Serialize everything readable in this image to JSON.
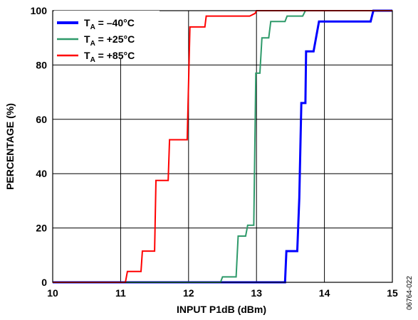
{
  "chart_data": {
    "type": "line",
    "step": true,
    "xlabel": "INPUT P1dB (dBm)",
    "ylabel": "PERCENTAGE (%)",
    "xlim": [
      10,
      15
    ],
    "ylim": [
      0,
      100
    ],
    "xticks": [
      10,
      11,
      12,
      13,
      14,
      15
    ],
    "yticks": [
      0,
      20,
      40,
      60,
      80,
      100
    ],
    "grid": true,
    "legend_position": "top-left",
    "figure_id": "06764-022",
    "series": [
      {
        "name": "T_A = –40°C",
        "name_main": "T",
        "name_sub": "A",
        "name_rest": " = –40°C",
        "color": "#0000ff",
        "x": [
          10,
          13.42,
          13.44,
          13.6,
          13.63,
          13.66,
          13.67,
          13.72,
          13.73,
          13.83,
          13.84,
          13.92,
          13.94,
          14.68,
          14.72,
          15
        ],
        "y": [
          0,
          0,
          11.5,
          11.5,
          31,
          66,
          66,
          66,
          85,
          85,
          85,
          96,
          96,
          96,
          100,
          100
        ]
      },
      {
        "name": "T_A = +25°C",
        "name_main": "T",
        "name_sub": "A",
        "name_rest": " = +25°C",
        "color": "#2e9a6a",
        "x": [
          10,
          12.47,
          12.5,
          12.7,
          12.73,
          12.84,
          12.87,
          12.94,
          12.96,
          12.99,
          13.01,
          13.05,
          13.08,
          13.18,
          13.21,
          13.3,
          13.32,
          13.42,
          13.45,
          13.68,
          13.72,
          15
        ],
        "y": [
          0,
          0,
          2,
          2,
          17,
          17,
          21,
          21,
          21,
          77,
          77,
          77,
          90,
          90,
          96,
          96,
          96,
          96,
          98,
          98,
          100,
          100
        ]
      },
      {
        "name": "T_A = +85°C",
        "name_main": "T",
        "name_sub": "A",
        "name_rest": " = +85°C",
        "color": "#ff0000",
        "x": [
          10,
          11.07,
          11.1,
          11.3,
          11.32,
          11.5,
          11.52,
          11.7,
          11.72,
          11.83,
          11.85,
          11.98,
          12.02,
          12.1,
          12.12,
          12.24,
          12.26,
          12.9,
          12.98,
          13.0,
          15
        ],
        "y": [
          0,
          0,
          4,
          4,
          11.5,
          11.5,
          37.5,
          37.5,
          52.5,
          52.5,
          52.5,
          52.5,
          94,
          94,
          94,
          94,
          98,
          98,
          99,
          100,
          100
        ]
      }
    ]
  }
}
